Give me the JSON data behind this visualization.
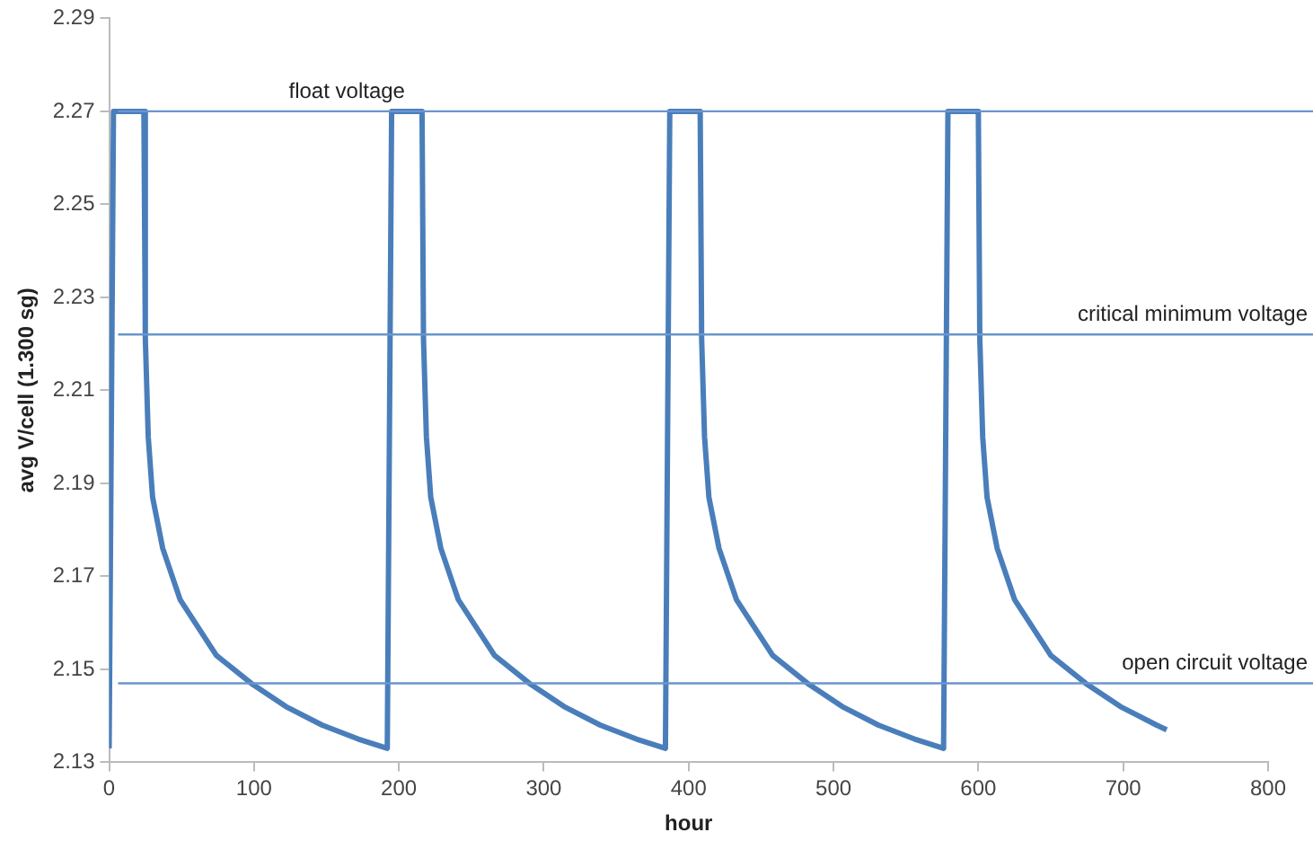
{
  "chart_data": {
    "type": "line",
    "xlabel": "hour",
    "ylabel": "avg V/cell (1.300 sg)",
    "xlim": [
      0,
      800
    ],
    "xticks": [
      0,
      100,
      200,
      300,
      400,
      500,
      600,
      700,
      800
    ],
    "ylim": [
      2.13,
      2.29
    ],
    "yticks": [
      {
        "value": 2.13,
        "label": "2.13"
      },
      {
        "value": 2.15,
        "label": "2.15"
      },
      {
        "value": 2.17,
        "label": "2.17"
      },
      {
        "value": 2.19,
        "label": "2.19"
      },
      {
        "value": 2.21,
        "label": "2.21"
      },
      {
        "value": 2.23,
        "label": "2.23"
      },
      {
        "value": 2.25,
        "label": "2.25"
      },
      {
        "value": 2.27,
        "label": "2.27"
      },
      {
        "value": 2.29,
        "label": "2.29"
      }
    ],
    "grid": false,
    "legend": false,
    "marker": "none",
    "line_style": "solid",
    "series": [
      {
        "color": "#4a7ebb",
        "x": [
          0,
          3,
          24,
          25,
          27,
          30,
          37,
          49,
          74,
          98,
          122,
          147,
          172,
          192,
          195,
          216,
          217,
          219,
          222,
          229,
          241,
          266,
          290,
          314,
          339,
          364,
          384,
          387,
          408,
          409,
          411,
          414,
          421,
          433,
          458,
          482,
          506,
          531,
          556,
          576,
          579,
          600,
          601,
          603,
          606,
          613,
          625,
          650,
          674,
          698,
          723,
          730
        ],
        "values": [
          2.133,
          2.27,
          2.27,
          2.221,
          2.2,
          2.187,
          2.176,
          2.165,
          2.153,
          2.147,
          2.142,
          2.138,
          2.135,
          2.133,
          2.27,
          2.27,
          2.221,
          2.2,
          2.187,
          2.176,
          2.165,
          2.153,
          2.147,
          2.142,
          2.138,
          2.135,
          2.133,
          2.27,
          2.27,
          2.221,
          2.2,
          2.187,
          2.176,
          2.165,
          2.153,
          2.147,
          2.142,
          2.138,
          2.135,
          2.133,
          2.27,
          2.27,
          2.221,
          2.2,
          2.187,
          2.176,
          2.165,
          2.153,
          2.147,
          2.142,
          2.138,
          2.137
        ]
      }
    ],
    "ref_lines": [
      {
        "axis": "y",
        "value": 2.27,
        "label": "float voltage",
        "color": "#6a95cc"
      },
      {
        "axis": "y",
        "value": 2.222,
        "label": "critical minimum voltage",
        "color": "#6a95cc"
      },
      {
        "axis": "y",
        "value": 2.147,
        "label": "open circuit voltage",
        "color": "#6a95cc"
      }
    ]
  }
}
